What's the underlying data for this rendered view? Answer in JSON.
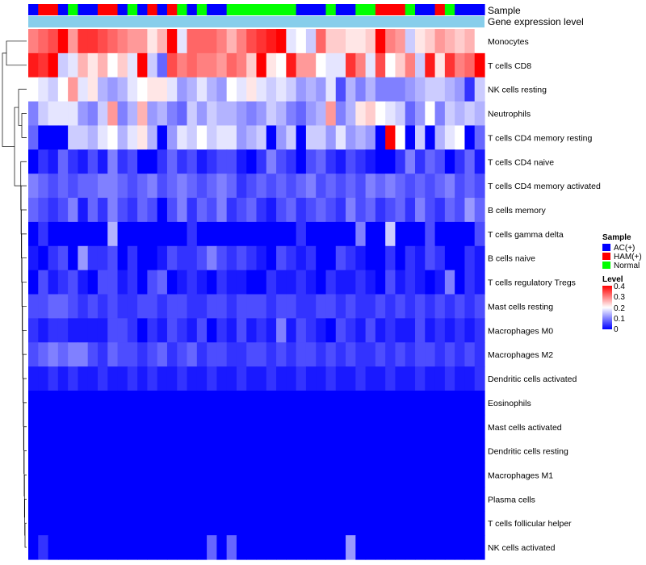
{
  "chart_data": {
    "type": "heatmap",
    "annotation_labels": [
      "Sample",
      "Gene expression level"
    ],
    "samples": [
      "AC(+)",
      "HAM(+)",
      "HAM(+)",
      "AC(+)",
      "Normal",
      "AC(+)",
      "AC(+)",
      "HAM(+)",
      "HAM(+)",
      "AC(+)",
      "Normal",
      "AC(+)",
      "HAM(+)",
      "AC(+)",
      "HAM(+)",
      "Normal",
      "AC(+)",
      "Normal",
      "AC(+)",
      "AC(+)",
      "Normal",
      "Normal",
      "Normal",
      "Normal",
      "Normal",
      "Normal",
      "Normal",
      "AC(+)",
      "AC(+)",
      "AC(+)",
      "Normal",
      "AC(+)",
      "AC(+)",
      "Normal",
      "Normal",
      "HAM(+)",
      "HAM(+)",
      "HAM(+)",
      "Normal",
      "AC(+)",
      "AC(+)",
      "HAM(+)",
      "Normal",
      "AC(+)",
      "AC(+)",
      "AC(+)"
    ],
    "rows": [
      "Monocytes",
      "T cells CD8",
      "NK cells resting",
      "Neutrophils",
      "T cells CD4 memory resting",
      "T cells CD4 naive",
      "T cells CD4 memory activated",
      "B cells memory",
      "T cells gamma delta",
      "B cells naive",
      "T cells regulatory  Tregs",
      "Mast cells resting",
      "Macrophages M0",
      "Macrophages M2",
      "Dendritic cells activated",
      "Eosinophils",
      "Mast cells activated",
      "Dendritic cells resting",
      "Macrophages M1",
      "Plasma cells",
      "T cells follicular helper",
      "NK cells activated"
    ],
    "values": [
      [
        0.3,
        0.32,
        0.34,
        0.4,
        0.28,
        0.36,
        0.36,
        0.34,
        0.32,
        0.3,
        0.28,
        0.28,
        0.22,
        0.26,
        0.4,
        0.18,
        0.32,
        0.32,
        0.32,
        0.3,
        0.26,
        0.3,
        0.34,
        0.36,
        0.38,
        0.4,
        0.18,
        0.2,
        0.16,
        0.32,
        0.24,
        0.24,
        0.22,
        0.22,
        0.24,
        0.4,
        0.3,
        0.28,
        0.16,
        0.22,
        0.24,
        0.28,
        0.26,
        0.24,
        0.26,
        0.2
      ],
      [
        0.38,
        0.36,
        0.4,
        0.16,
        0.18,
        0.26,
        0.22,
        0.26,
        0.2,
        0.24,
        0.18,
        0.4,
        0.16,
        0.08,
        0.34,
        0.3,
        0.32,
        0.3,
        0.3,
        0.28,
        0.32,
        0.3,
        0.24,
        0.4,
        0.22,
        0.2,
        0.38,
        0.28,
        0.28,
        0.2,
        0.18,
        0.18,
        0.36,
        0.3,
        0.18,
        0.34,
        0.2,
        0.24,
        0.3,
        0.16,
        0.38,
        0.22,
        0.36,
        0.3,
        0.32,
        0.4
      ],
      [
        0.2,
        0.18,
        0.16,
        0.2,
        0.28,
        0.18,
        0.22,
        0.14,
        0.12,
        0.14,
        0.18,
        0.2,
        0.22,
        0.22,
        0.18,
        0.12,
        0.14,
        0.18,
        0.14,
        0.12,
        0.2,
        0.18,
        0.22,
        0.18,
        0.16,
        0.18,
        0.16,
        0.12,
        0.14,
        0.12,
        0.18,
        0.06,
        0.14,
        0.1,
        0.14,
        0.1,
        0.1,
        0.1,
        0.12,
        0.14,
        0.16,
        0.16,
        0.14,
        0.12,
        0.04,
        0.16
      ],
      [
        0.1,
        0.16,
        0.18,
        0.18,
        0.18,
        0.12,
        0.1,
        0.16,
        0.28,
        0.1,
        0.14,
        0.26,
        0.12,
        0.14,
        0.1,
        0.08,
        0.16,
        0.12,
        0.16,
        0.14,
        0.14,
        0.12,
        0.1,
        0.12,
        0.16,
        0.14,
        0.1,
        0.08,
        0.12,
        0.14,
        0.28,
        0.1,
        0.14,
        0.22,
        0.24,
        0.2,
        0.18,
        0.16,
        0.08,
        0.12,
        0.2,
        0.1,
        0.16,
        0.14,
        0.16,
        0.14
      ],
      [
        0.08,
        0.0,
        0.0,
        0.0,
        0.16,
        0.16,
        0.14,
        0.18,
        0.2,
        0.14,
        0.18,
        0.22,
        0.14,
        0.0,
        0.12,
        0.18,
        0.16,
        0.2,
        0.16,
        0.18,
        0.18,
        0.12,
        0.14,
        0.16,
        0.0,
        0.12,
        0.16,
        0.0,
        0.16,
        0.16,
        0.12,
        0.18,
        0.12,
        0.14,
        0.12,
        0.0,
        0.4,
        0.2,
        0.0,
        0.16,
        0.0,
        0.14,
        0.18,
        0.2,
        0.0,
        0.08
      ],
      [
        0.0,
        0.04,
        0.02,
        0.08,
        0.04,
        0.02,
        0.06,
        0.02,
        0.1,
        0.04,
        0.06,
        0.0,
        0.0,
        0.04,
        0.08,
        0.04,
        0.06,
        0.02,
        0.04,
        0.06,
        0.06,
        0.02,
        0.0,
        0.04,
        0.1,
        0.06,
        0.04,
        0.0,
        0.06,
        0.08,
        0.04,
        0.02,
        0.06,
        0.04,
        0.02,
        0.0,
        0.0,
        0.04,
        0.1,
        0.04,
        0.08,
        0.06,
        0.0,
        0.04,
        0.08,
        0.02
      ],
      [
        0.1,
        0.08,
        0.06,
        0.08,
        0.06,
        0.08,
        0.08,
        0.1,
        0.1,
        0.08,
        0.06,
        0.08,
        0.1,
        0.06,
        0.08,
        0.1,
        0.08,
        0.06,
        0.08,
        0.1,
        0.08,
        0.04,
        0.06,
        0.08,
        0.06,
        0.08,
        0.06,
        0.08,
        0.1,
        0.06,
        0.08,
        0.06,
        0.08,
        0.06,
        0.1,
        0.08,
        0.1,
        0.08,
        0.06,
        0.08,
        0.06,
        0.08,
        0.1,
        0.06,
        0.08,
        0.06
      ],
      [
        0.08,
        0.06,
        0.04,
        0.06,
        0.1,
        0.02,
        0.08,
        0.04,
        0.1,
        0.06,
        0.04,
        0.08,
        0.06,
        0.0,
        0.06,
        0.1,
        0.04,
        0.08,
        0.06,
        0.1,
        0.04,
        0.06,
        0.08,
        0.04,
        0.02,
        0.06,
        0.08,
        0.04,
        0.06,
        0.08,
        0.06,
        0.04,
        0.1,
        0.06,
        0.08,
        0.04,
        0.06,
        0.08,
        0.04,
        0.1,
        0.06,
        0.04,
        0.08,
        0.06,
        0.12,
        0.08
      ],
      [
        0.0,
        0.04,
        0.0,
        0.0,
        0.0,
        0.0,
        0.0,
        0.0,
        0.14,
        0.0,
        0.0,
        0.0,
        0.0,
        0.0,
        0.0,
        0.0,
        0.04,
        0.0,
        0.0,
        0.0,
        0.0,
        0.0,
        0.0,
        0.0,
        0.0,
        0.0,
        0.0,
        0.04,
        0.0,
        0.0,
        0.0,
        0.0,
        0.0,
        0.1,
        0.0,
        0.0,
        0.16,
        0.0,
        0.0,
        0.0,
        0.06,
        0.0,
        0.0,
        0.0,
        0.0,
        0.06
      ],
      [
        0.02,
        0.0,
        0.04,
        0.06,
        0.0,
        0.12,
        0.04,
        0.04,
        0.06,
        0.0,
        0.04,
        0.0,
        0.0,
        0.02,
        0.06,
        0.04,
        0.04,
        0.06,
        0.1,
        0.06,
        0.04,
        0.06,
        0.04,
        0.02,
        0.0,
        0.06,
        0.04,
        0.02,
        0.04,
        0.0,
        0.0,
        0.06,
        0.04,
        0.02,
        0.0,
        0.0,
        0.04,
        0.0,
        0.04,
        0.02,
        0.06,
        0.04,
        0.0,
        0.0,
        0.04,
        0.02
      ],
      [
        0.0,
        0.06,
        0.02,
        0.04,
        0.06,
        0.02,
        0.0,
        0.06,
        0.06,
        0.02,
        0.04,
        0.0,
        0.06,
        0.08,
        0.0,
        0.02,
        0.04,
        0.02,
        0.0,
        0.04,
        0.02,
        0.02,
        0.0,
        0.0,
        0.04,
        0.02,
        0.02,
        0.04,
        0.02,
        0.0,
        0.04,
        0.02,
        0.02,
        0.04,
        0.02,
        0.0,
        0.06,
        0.02,
        0.04,
        0.02,
        0.0,
        0.02,
        0.1,
        0.0,
        0.04,
        0.02
      ],
      [
        0.06,
        0.06,
        0.08,
        0.08,
        0.06,
        0.04,
        0.06,
        0.04,
        0.06,
        0.04,
        0.04,
        0.06,
        0.06,
        0.04,
        0.06,
        0.06,
        0.04,
        0.04,
        0.06,
        0.06,
        0.04,
        0.06,
        0.06,
        0.06,
        0.04,
        0.06,
        0.06,
        0.04,
        0.04,
        0.06,
        0.06,
        0.04,
        0.06,
        0.04,
        0.04,
        0.06,
        0.04,
        0.06,
        0.04,
        0.06,
        0.04,
        0.06,
        0.04,
        0.06,
        0.04,
        0.06
      ],
      [
        0.04,
        0.02,
        0.04,
        0.04,
        0.02,
        0.02,
        0.02,
        0.02,
        0.06,
        0.06,
        0.04,
        0.0,
        0.04,
        0.02,
        0.06,
        0.04,
        0.02,
        0.06,
        0.0,
        0.04,
        0.02,
        0.06,
        0.02,
        0.04,
        0.02,
        0.1,
        0.02,
        0.06,
        0.04,
        0.02,
        0.0,
        0.06,
        0.04,
        0.02,
        0.06,
        0.02,
        0.04,
        0.02,
        0.02,
        0.06,
        0.02,
        0.04,
        0.02,
        0.04,
        0.02,
        0.04
      ],
      [
        0.06,
        0.08,
        0.1,
        0.08,
        0.1,
        0.1,
        0.06,
        0.04,
        0.08,
        0.06,
        0.06,
        0.04,
        0.06,
        0.08,
        0.04,
        0.06,
        0.08,
        0.04,
        0.06,
        0.06,
        0.04,
        0.04,
        0.06,
        0.06,
        0.04,
        0.06,
        0.04,
        0.06,
        0.06,
        0.04,
        0.06,
        0.04,
        0.06,
        0.04,
        0.04,
        0.06,
        0.04,
        0.06,
        0.04,
        0.06,
        0.06,
        0.04,
        0.06,
        0.04,
        0.06,
        0.04
      ],
      [
        0.02,
        0.02,
        0.04,
        0.02,
        0.04,
        0.02,
        0.02,
        0.04,
        0.02,
        0.02,
        0.04,
        0.02,
        0.04,
        0.02,
        0.02,
        0.04,
        0.02,
        0.02,
        0.04,
        0.02,
        0.02,
        0.04,
        0.02,
        0.02,
        0.04,
        0.02,
        0.02,
        0.04,
        0.02,
        0.02,
        0.04,
        0.02,
        0.02,
        0.04,
        0.02,
        0.02,
        0.04,
        0.02,
        0.02,
        0.04,
        0.02,
        0.02,
        0.04,
        0.02,
        0.02,
        0.04
      ],
      [
        0.0,
        0.0,
        0.0,
        0.0,
        0.0,
        0.0,
        0.0,
        0.0,
        0.0,
        0.0,
        0.0,
        0.0,
        0.0,
        0.0,
        0.0,
        0.0,
        0.0,
        0.0,
        0.0,
        0.0,
        0.0,
        0.0,
        0.0,
        0.0,
        0.0,
        0.0,
        0.0,
        0.0,
        0.0,
        0.0,
        0.0,
        0.0,
        0.0,
        0.0,
        0.0,
        0.0,
        0.0,
        0.0,
        0.0,
        0.0,
        0.0,
        0.0,
        0.0,
        0.0,
        0.0,
        0.0
      ],
      [
        0.0,
        0.0,
        0.0,
        0.0,
        0.0,
        0.0,
        0.0,
        0.0,
        0.0,
        0.0,
        0.0,
        0.0,
        0.0,
        0.0,
        0.0,
        0.0,
        0.0,
        0.0,
        0.0,
        0.0,
        0.0,
        0.0,
        0.0,
        0.0,
        0.0,
        0.0,
        0.0,
        0.0,
        0.0,
        0.0,
        0.0,
        0.0,
        0.0,
        0.0,
        0.0,
        0.0,
        0.0,
        0.0,
        0.0,
        0.0,
        0.0,
        0.0,
        0.0,
        0.0,
        0.0,
        0.0
      ],
      [
        0.0,
        0.0,
        0.0,
        0.0,
        0.0,
        0.0,
        0.0,
        0.0,
        0.0,
        0.0,
        0.0,
        0.0,
        0.0,
        0.0,
        0.0,
        0.0,
        0.0,
        0.0,
        0.0,
        0.0,
        0.0,
        0.0,
        0.0,
        0.0,
        0.0,
        0.0,
        0.0,
        0.0,
        0.0,
        0.0,
        0.0,
        0.0,
        0.0,
        0.0,
        0.0,
        0.0,
        0.0,
        0.0,
        0.0,
        0.0,
        0.0,
        0.0,
        0.0,
        0.0,
        0.0,
        0.0
      ],
      [
        0.0,
        0.0,
        0.0,
        0.0,
        0.0,
        0.0,
        0.0,
        0.0,
        0.0,
        0.0,
        0.0,
        0.0,
        0.0,
        0.0,
        0.0,
        0.0,
        0.0,
        0.0,
        0.0,
        0.0,
        0.0,
        0.0,
        0.0,
        0.0,
        0.0,
        0.0,
        0.0,
        0.0,
        0.0,
        0.0,
        0.0,
        0.0,
        0.0,
        0.0,
        0.0,
        0.0,
        0.0,
        0.0,
        0.0,
        0.0,
        0.0,
        0.0,
        0.0,
        0.0,
        0.0,
        0.0
      ],
      [
        0.0,
        0.0,
        0.0,
        0.0,
        0.0,
        0.0,
        0.0,
        0.0,
        0.0,
        0.0,
        0.0,
        0.0,
        0.0,
        0.0,
        0.0,
        0.0,
        0.0,
        0.0,
        0.0,
        0.0,
        0.0,
        0.0,
        0.0,
        0.0,
        0.0,
        0.0,
        0.0,
        0.0,
        0.0,
        0.0,
        0.0,
        0.0,
        0.0,
        0.0,
        0.0,
        0.0,
        0.0,
        0.0,
        0.0,
        0.0,
        0.0,
        0.0,
        0.0,
        0.0,
        0.0,
        0.0
      ],
      [
        0.0,
        0.0,
        0.0,
        0.0,
        0.0,
        0.0,
        0.0,
        0.0,
        0.0,
        0.0,
        0.0,
        0.0,
        0.0,
        0.0,
        0.0,
        0.0,
        0.0,
        0.0,
        0.0,
        0.0,
        0.0,
        0.0,
        0.0,
        0.0,
        0.0,
        0.0,
        0.0,
        0.0,
        0.0,
        0.0,
        0.0,
        0.0,
        0.0,
        0.0,
        0.0,
        0.0,
        0.0,
        0.0,
        0.0,
        0.0,
        0.0,
        0.0,
        0.0,
        0.0,
        0.0,
        0.0
      ],
      [
        0.0,
        0.04,
        0.0,
        0.0,
        0.0,
        0.0,
        0.0,
        0.0,
        0.0,
        0.0,
        0.0,
        0.0,
        0.0,
        0.0,
        0.0,
        0.0,
        0.0,
        0.0,
        0.08,
        0.0,
        0.08,
        0.0,
        0.0,
        0.0,
        0.0,
        0.0,
        0.0,
        0.0,
        0.0,
        0.0,
        0.0,
        0.0,
        0.12,
        0.0,
        0.0,
        0.0,
        0.0,
        0.0,
        0.0,
        0.0,
        0.0,
        0.0,
        0.0,
        0.0,
        0.0,
        0.0
      ]
    ],
    "color_scale": {
      "min": 0,
      "mid": 0.2,
      "max": 0.4,
      "low_color": "#0000ff",
      "mid_color": "#ffffff",
      "high_color": "#ff0000"
    },
    "expression_bar_color": "#87ceeb",
    "sample_colors": {
      "AC(+)": "#0000ff",
      "HAM(+)": "#ff0000",
      "Normal": "#00ff00"
    },
    "legend": {
      "sample_title": "Sample",
      "sample_entries": [
        "AC(+)",
        "HAM(+)",
        "Normal"
      ],
      "level_title": "Level",
      "level_ticks": [
        "0.4",
        "0.3",
        "0.2",
        "0.1",
        "0"
      ]
    }
  }
}
